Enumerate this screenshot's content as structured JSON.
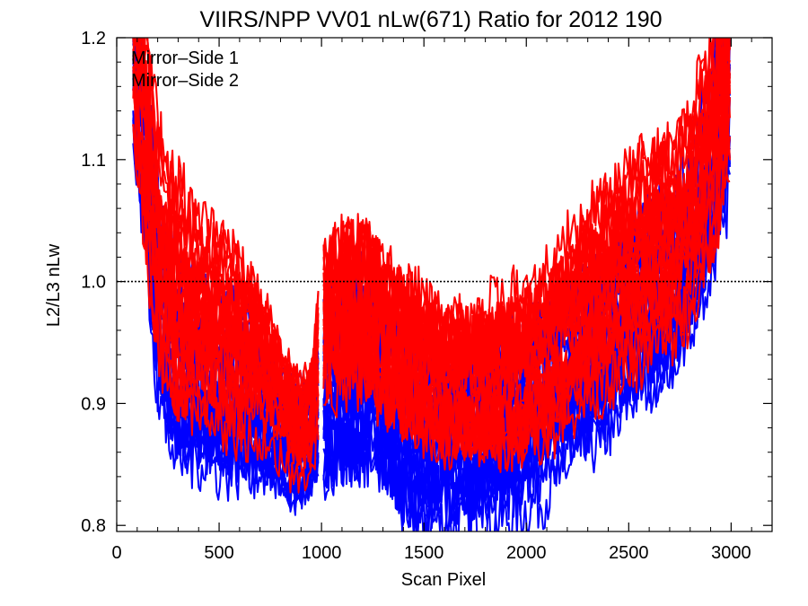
{
  "chart_data": {
    "type": "line",
    "title": "VIIRS/NPP VV01 nLw(671) Ratio for 2012 190",
    "xlabel": "Scan Pixel",
    "ylabel": "L2/L3 nLw",
    "xlim": [
      0,
      3200
    ],
    "ylim": [
      0.795,
      1.2
    ],
    "x_ticks": [
      0,
      500,
      1000,
      1500,
      2000,
      2500,
      3000
    ],
    "y_ticks": [
      0.8,
      0.9,
      1.0,
      1.1,
      1.2
    ],
    "x_tick_labels": [
      "0",
      "500",
      "1000",
      "1500",
      "2000",
      "2500",
      "3000"
    ],
    "y_tick_labels": [
      "0.8",
      "0.9",
      "1.0",
      "1.1",
      "1.2"
    ],
    "reference_line": {
      "y": 1.0,
      "style": "dotted",
      "color": "#000000"
    },
    "legend": {
      "placement": "top-left",
      "entries": [
        {
          "label": "Mirror–Side 1",
          "color": "#0000ff"
        },
        {
          "label": "Mirror–Side 2",
          "color": "#ff0000"
        }
      ]
    },
    "series_style": {
      "line_count_per_side": 22,
      "noise": "high",
      "segments": [
        [
          80,
          990
        ],
        [
          1010,
          3000
        ]
      ]
    },
    "series_envelope": {
      "x": [
        80,
        150,
        200,
        250,
        300,
        400,
        500,
        600,
        700,
        800,
        850,
        900,
        950,
        1000,
        1100,
        1200,
        1300,
        1400,
        1500,
        1600,
        1700,
        1800,
        1900,
        2000,
        2100,
        2200,
        2300,
        2400,
        2500,
        2600,
        2700,
        2800,
        2900,
        3000
      ],
      "mirror_side_1_center": [
        1.18,
        1.08,
        0.98,
        0.94,
        0.92,
        0.91,
        0.9,
        0.9,
        0.89,
        0.87,
        0.86,
        0.86,
        0.87,
        0.9,
        0.92,
        0.93,
        0.92,
        0.89,
        0.88,
        0.88,
        0.88,
        0.88,
        0.89,
        0.9,
        0.91,
        0.93,
        0.94,
        0.95,
        0.97,
        0.98,
        0.99,
        1.02,
        1.08,
        1.16
      ],
      "mirror_side_2_center": [
        1.2,
        1.11,
        1.03,
        1.0,
        0.99,
        0.97,
        0.96,
        0.95,
        0.94,
        0.91,
        0.89,
        0.88,
        0.89,
        0.96,
        0.98,
        0.98,
        0.96,
        0.94,
        0.93,
        0.92,
        0.92,
        0.92,
        0.92,
        0.93,
        0.94,
        0.96,
        0.98,
        0.99,
        1.01,
        1.02,
        1.03,
        1.05,
        1.11,
        1.19
      ],
      "spread": [
        0.06,
        0.07,
        0.07,
        0.07,
        0.07,
        0.06,
        0.06,
        0.06,
        0.05,
        0.04,
        0.04,
        0.04,
        0.04,
        0.06,
        0.07,
        0.07,
        0.07,
        0.07,
        0.07,
        0.06,
        0.06,
        0.06,
        0.06,
        0.06,
        0.06,
        0.06,
        0.06,
        0.06,
        0.06,
        0.06,
        0.06,
        0.06,
        0.07,
        0.08
      ]
    }
  }
}
